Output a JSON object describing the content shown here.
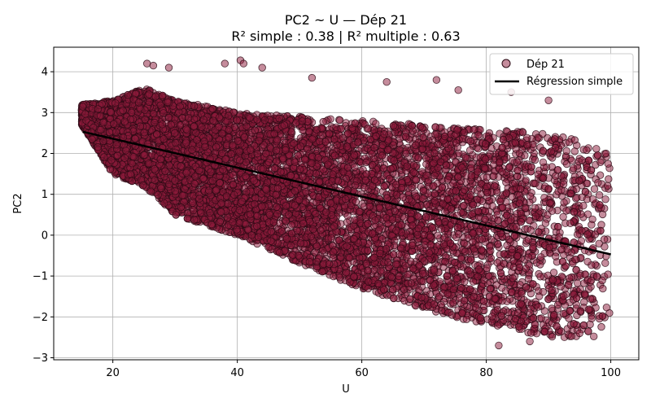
{
  "chart_data": {
    "type": "scatter",
    "title": "PC2 ~ U — Dép 21",
    "subtitle": "R² simple : 0.38 | R² multiple : 0.63",
    "xlabel": "U",
    "ylabel": "PC2",
    "xlim": [
      10.5,
      104.5
    ],
    "ylim": [
      -3.05,
      4.6
    ],
    "x_ticks": [
      20,
      40,
      60,
      80,
      100
    ],
    "y_ticks": [
      -3,
      -2,
      -1,
      0,
      1,
      2,
      3,
      4
    ],
    "x_tick_labels": [
      "20",
      "40",
      "60",
      "80",
      "100"
    ],
    "y_tick_labels": [
      "−3",
      "−2",
      "−1",
      "0",
      "1",
      "2",
      "3",
      "4"
    ],
    "grid": true,
    "legend_position": "top-right",
    "series": [
      {
        "name": "Dép 21",
        "kind": "scatter",
        "color": "#8b1a3a",
        "edge_color": "#2a0a14",
        "opacity": 0.5,
        "band": {
          "x_range": [
            15,
            100
          ],
          "upper": [
            [
              15,
              3.2
            ],
            [
              20,
              3.3
            ],
            [
              25,
              3.6
            ],
            [
              30,
              3.3
            ],
            [
              40,
              3.0
            ],
            [
              50,
              2.9
            ],
            [
              60,
              2.8
            ],
            [
              70,
              2.7
            ],
            [
              80,
              2.6
            ],
            [
              90,
              2.5
            ],
            [
              95,
              2.3
            ],
            [
              100,
              2.0
            ]
          ],
          "lower": [
            [
              15,
              2.7
            ],
            [
              20,
              1.5
            ],
            [
              25,
              1.2
            ],
            [
              30,
              0.5
            ],
            [
              40,
              0.0
            ],
            [
              50,
              -0.7
            ],
            [
              60,
              -1.3
            ],
            [
              70,
              -1.8
            ],
            [
              80,
              -2.2
            ],
            [
              90,
              -2.5
            ],
            [
              100,
              -2.5
            ]
          ]
        },
        "outliers": [
          [
            25.5,
            4.2
          ],
          [
            26.5,
            4.15
          ],
          [
            29,
            4.1
          ],
          [
            38,
            4.2
          ],
          [
            40.5,
            4.28
          ],
          [
            41,
            4.2
          ],
          [
            44,
            4.1
          ],
          [
            52,
            3.85
          ],
          [
            64,
            3.75
          ],
          [
            72,
            3.8
          ],
          [
            75.5,
            3.55
          ],
          [
            84,
            3.5
          ],
          [
            90,
            3.3
          ],
          [
            82,
            -2.7
          ],
          [
            87,
            -2.6
          ],
          [
            95,
            -2.4
          ]
        ]
      },
      {
        "name": "Régression simple",
        "kind": "line",
        "color": "#000000",
        "points": [
          [
            15.2,
            2.53
          ],
          [
            100,
            -0.47
          ]
        ]
      }
    ]
  }
}
